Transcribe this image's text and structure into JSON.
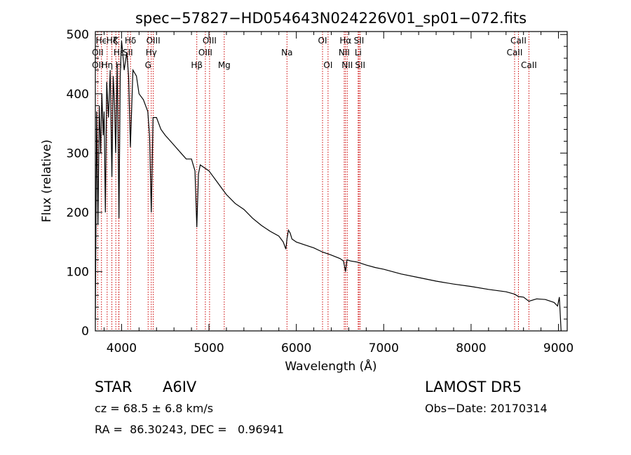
{
  "chart_data": {
    "type": "line",
    "title": "spec−57827−HD054643N024226V01_sp01−072.fits",
    "xlabel": "Wavelength (Å)",
    "ylabel": "Flux (relative)",
    "xlim": [
      3700,
      9100
    ],
    "ylim": [
      0,
      505
    ],
    "xticks": [
      "4000",
      "5000",
      "6000",
      "7000",
      "8000",
      "9000"
    ],
    "yticks": [
      "0",
      "100",
      "200",
      "300",
      "400",
      "500"
    ],
    "grid": false,
    "line_color": "#000000",
    "marker_color": "#cc0000",
    "spectrum": {
      "x": [
        3700,
        3715,
        3730,
        3745,
        3760,
        3775,
        3790,
        3800,
        3815,
        3830,
        3850,
        3870,
        3889,
        3905,
        3920,
        3933,
        3950,
        3970,
        3985,
        4000,
        4030,
        4060,
        4080,
        4101,
        4130,
        4170,
        4200,
        4250,
        4300,
        4320,
        4340,
        4360,
        4400,
        4450,
        4500,
        4560,
        4620,
        4680,
        4740,
        4800,
        4840,
        4861,
        4880,
        4900,
        4950,
        5000,
        5050,
        5100,
        5150,
        5200,
        5300,
        5400,
        5500,
        5600,
        5700,
        5800,
        5850,
        5880,
        5893,
        5910,
        5930,
        5950,
        5980,
        6000,
        6100,
        6200,
        6300,
        6400,
        6500,
        6540,
        6563,
        6580,
        6620,
        6700,
        6800,
        6900,
        7000,
        7200,
        7400,
        7600,
        7800,
        8000,
        8200,
        8400,
        8498,
        8542,
        8600,
        8662,
        8750,
        8850,
        8950,
        8990,
        9010,
        9030
      ],
      "y": [
        20,
        370,
        180,
        380,
        300,
        400,
        330,
        370,
        200,
        420,
        360,
        440,
        260,
        430,
        380,
        300,
        450,
        190,
        430,
        490,
        440,
        470,
        430,
        310,
        440,
        430,
        400,
        390,
        370,
        330,
        200,
        360,
        360,
        340,
        330,
        320,
        310,
        300,
        290,
        290,
        270,
        175,
        265,
        280,
        275,
        270,
        260,
        250,
        240,
        230,
        215,
        205,
        190,
        178,
        168,
        160,
        150,
        138,
        155,
        170,
        165,
        155,
        152,
        150,
        145,
        140,
        133,
        128,
        122,
        118,
        100,
        120,
        118,
        116,
        111,
        107,
        104,
        96,
        90,
        84,
        79,
        75,
        70,
        66,
        62,
        58,
        57,
        50,
        54,
        53,
        48,
        42,
        57,
        0
      ]
    },
    "lines": [
      {
        "name": "Hϵ",
        "x": 3770,
        "row": 0
      },
      {
        "name": "OII",
        "x": 3727,
        "row": 1
      },
      {
        "name": "OII",
        "x": 3727,
        "row": 2
      },
      {
        "name": "Hη",
        "x": 3835,
        "row": 2
      },
      {
        "name": "Hζ",
        "x": 3889,
        "row": 0
      },
      {
        "name": "Hε",
        "x": 3970,
        "row": 1
      },
      {
        "name": "K",
        "x": 3934,
        "row": 0
      },
      {
        "name": "H",
        "x": 3968,
        "row": 2
      },
      {
        "name": "Hδ",
        "x": 4102,
        "row": 0
      },
      {
        "name": "SII",
        "x": 4072,
        "row": 1
      },
      {
        "name": "OIII",
        "x": 4363,
        "row": 0
      },
      {
        "name": "Hγ",
        "x": 4340,
        "row": 1
      },
      {
        "name": "G",
        "x": 4304,
        "row": 2
      },
      {
        "name": "Hβ",
        "x": 4861,
        "row": 2
      },
      {
        "name": "OIII",
        "x": 5007,
        "row": 0
      },
      {
        "name": "OIII",
        "x": 4959,
        "row": 1
      },
      {
        "name": "Mg",
        "x": 5175,
        "row": 2
      },
      {
        "name": "Na",
        "x": 5893,
        "row": 1
      },
      {
        "name": "OI",
        "x": 6300,
        "row": 0
      },
      {
        "name": "OI",
        "x": 6363,
        "row": 2
      },
      {
        "name": "Hα",
        "x": 6563,
        "row": 0
      },
      {
        "name": "NII",
        "x": 6548,
        "row": 1
      },
      {
        "name": "NII",
        "x": 6583,
        "row": 2
      },
      {
        "name": "SII",
        "x": 6717,
        "row": 0
      },
      {
        "name": "Li",
        "x": 6708,
        "row": 1
      },
      {
        "name": "SII",
        "x": 6731,
        "row": 2
      },
      {
        "name": "CaII",
        "x": 8542,
        "row": 0
      },
      {
        "name": "CaII",
        "x": 8498,
        "row": 1
      },
      {
        "name": "CaII",
        "x": 8662,
        "row": 2
      }
    ]
  },
  "info": {
    "object_class": "STAR",
    "subclass": "A6IV",
    "survey": "LAMOST DR5",
    "redshift": "cz = 68.5 ± 6.8 km/s",
    "obs_date": "Obs−Date: 20170314",
    "coords": "RA =  86.30243, DEC =   0.96941"
  }
}
